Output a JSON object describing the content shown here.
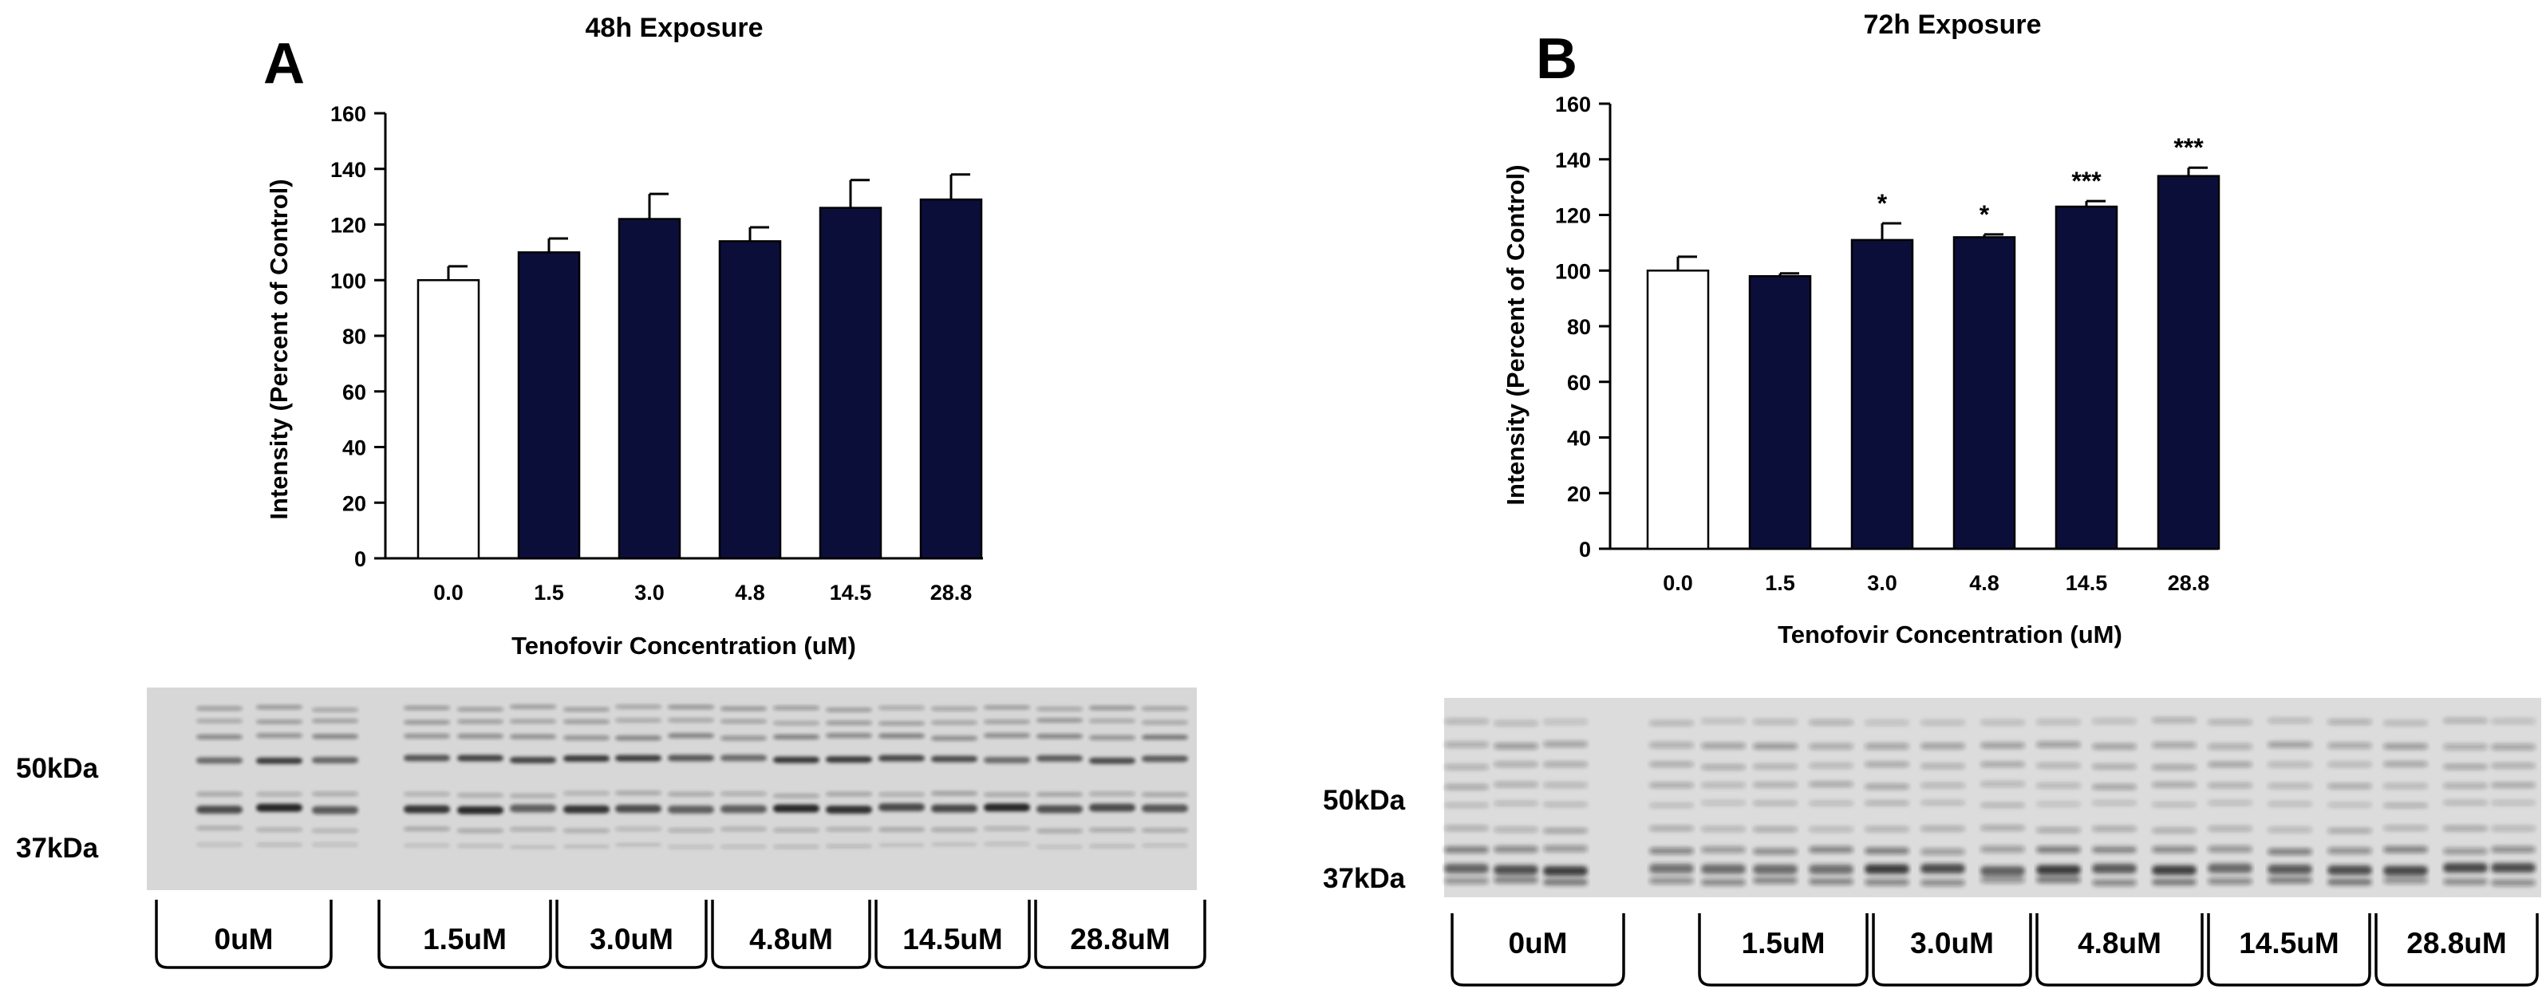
{
  "chart_data": [
    {
      "type": "bar",
      "panel_label": "A",
      "title": "48h Exposure",
      "xlabel": "Tenofovir Concentration (uM)",
      "ylabel": "Intensity (Percent of Control)",
      "ylim": [
        0,
        160
      ],
      "yticks": [
        "0",
        "20",
        "40",
        "60",
        "80",
        "100",
        "120",
        "140",
        "160"
      ],
      "categories": [
        "0.0",
        "1.5",
        "3.0",
        "4.8",
        "14.5",
        "28.8"
      ],
      "values": [
        100,
        110,
        122,
        114,
        126,
        129
      ],
      "errors": [
        5,
        5,
        9,
        5,
        10,
        9
      ],
      "significance": [
        "",
        "",
        "",
        "",
        "",
        ""
      ],
      "bar_colors": [
        "#ffffff",
        "#0c0e3a",
        "#0c0e3a",
        "#0c0e3a",
        "#0c0e3a",
        "#0c0e3a"
      ],
      "blot": {
        "markers": [
          "50kDa",
          "37kDa"
        ],
        "groups": [
          "0uM",
          "1.5uM",
          "3.0uM",
          "4.8uM",
          "14.5uM",
          "28.8uM"
        ]
      }
    },
    {
      "type": "bar",
      "panel_label": "B",
      "title": "72h Exposure",
      "xlabel": "Tenofovir Concentration (uM)",
      "ylabel": "Intensity (Percent of Control)",
      "ylim": [
        0,
        160
      ],
      "yticks": [
        "0",
        "20",
        "40",
        "60",
        "80",
        "100",
        "120",
        "140",
        "160"
      ],
      "categories": [
        "0.0",
        "1.5",
        "3.0",
        "4.8",
        "14.5",
        "28.8"
      ],
      "values": [
        100,
        98,
        111,
        112,
        123,
        134
      ],
      "errors": [
        5,
        1,
        6,
        1,
        2,
        3
      ],
      "significance": [
        "",
        "",
        "*",
        "*",
        "***",
        "***"
      ],
      "bar_colors": [
        "#ffffff",
        "#0c0e3a",
        "#0c0e3a",
        "#0c0e3a",
        "#0c0e3a",
        "#0c0e3a"
      ],
      "blot": {
        "markers": [
          "50kDa",
          "37kDa"
        ],
        "groups": [
          "0uM",
          "1.5uM",
          "3.0uM",
          "4.8uM",
          "14.5uM",
          "28.8uM"
        ]
      }
    }
  ]
}
